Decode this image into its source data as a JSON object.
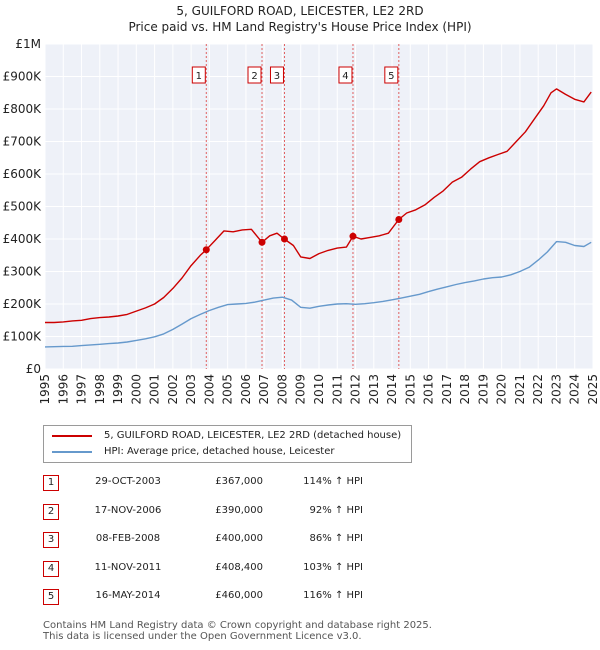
{
  "chart_data": {
    "type": "line",
    "title": "5, GUILFORD ROAD, LEICESTER, LE2 2RD",
    "subtitle": "Price paid vs. HM Land Registry's House Price Index (HPI)",
    "xlim": [
      1995,
      2025
    ],
    "ylim": [
      0,
      1000000
    ],
    "x_tick_labels": [
      "1995",
      "1996",
      "1997",
      "1998",
      "1999",
      "2000",
      "2001",
      "2002",
      "2003",
      "2004",
      "2005",
      "2006",
      "2007",
      "2008",
      "2009",
      "2010",
      "2011",
      "2012",
      "2013",
      "2014",
      "2015",
      "2016",
      "2017",
      "2018",
      "2019",
      "2020",
      "2021",
      "2022",
      "2023",
      "2024",
      "2025"
    ],
    "y_ticks": [
      {
        "value": 0,
        "label": "£0"
      },
      {
        "value": 100000,
        "label": "£100K"
      },
      {
        "value": 200000,
        "label": "£200K"
      },
      {
        "value": 300000,
        "label": "£300K"
      },
      {
        "value": 400000,
        "label": "£400K"
      },
      {
        "value": 500000,
        "label": "£500K"
      },
      {
        "value": 600000,
        "label": "£600K"
      },
      {
        "value": 700000,
        "label": "£700K"
      },
      {
        "value": 800000,
        "label": "£800K"
      },
      {
        "value": 900000,
        "label": "£900K"
      },
      {
        "value": 1000000,
        "label": "£1M"
      }
    ],
    "grid": true,
    "series": [
      {
        "name": "5, GUILFORD ROAD, LEICESTER, LE2 2RD (detached house)",
        "color": "#cc0000",
        "x": [
          1995.0,
          1995.5,
          1996.0,
          1996.5,
          1997.0,
          1997.5,
          1998.0,
          1998.5,
          1999.0,
          1999.5,
          2000.0,
          2000.5,
          2001.0,
          2001.5,
          2002.0,
          2002.5,
          2003.0,
          2003.5,
          2003.83,
          2004.3,
          2004.8,
          2005.3,
          2005.8,
          2006.3,
          2006.88,
          2007.3,
          2007.7,
          2008.1,
          2008.6,
          2009.0,
          2009.5,
          2010.0,
          2010.5,
          2011.0,
          2011.5,
          2011.86,
          2012.3,
          2012.8,
          2013.3,
          2013.8,
          2014.37,
          2014.8,
          2015.3,
          2015.8,
          2016.3,
          2016.8,
          2017.3,
          2017.8,
          2018.3,
          2018.8,
          2019.3,
          2019.8,
          2020.3,
          2020.8,
          2021.3,
          2021.8,
          2022.3,
          2022.7,
          2023.0,
          2023.5,
          2024.0,
          2024.5,
          2024.9
        ],
        "values": [
          143000,
          143000,
          145000,
          148000,
          150000,
          155000,
          158000,
          160000,
          163000,
          168000,
          178000,
          188000,
          200000,
          220000,
          248000,
          280000,
          318000,
          350000,
          367000,
          395000,
          425000,
          422000,
          428000,
          430000,
          390000,
          410000,
          418000,
          400000,
          380000,
          345000,
          340000,
          355000,
          365000,
          372000,
          375000,
          408400,
          400000,
          405000,
          410000,
          418000,
          460000,
          480000,
          490000,
          505000,
          528000,
          548000,
          575000,
          590000,
          615000,
          638000,
          650000,
          660000,
          670000,
          700000,
          730000,
          770000,
          810000,
          850000,
          862000,
          845000,
          830000,
          822000,
          852000
        ]
      },
      {
        "name": "HPI: Average price, detached house, Leicester",
        "color": "#6699cc",
        "x": [
          1995.0,
          1995.5,
          1996.0,
          1996.5,
          1997.0,
          1997.5,
          1998.0,
          1998.5,
          1999.0,
          1999.5,
          2000.0,
          2000.5,
          2001.0,
          2001.5,
          2002.0,
          2002.5,
          2003.0,
          2003.5,
          2004.0,
          2004.5,
          2005.0,
          2005.5,
          2006.0,
          2006.5,
          2007.0,
          2007.5,
          2008.0,
          2008.5,
          2009.0,
          2009.5,
          2010.0,
          2010.5,
          2011.0,
          2011.5,
          2012.0,
          2012.5,
          2013.0,
          2013.5,
          2014.0,
          2014.5,
          2015.0,
          2015.5,
          2016.0,
          2016.5,
          2017.0,
          2017.5,
          2018.0,
          2018.5,
          2019.0,
          2019.5,
          2020.0,
          2020.5,
          2021.0,
          2021.5,
          2022.0,
          2022.5,
          2023.0,
          2023.5,
          2024.0,
          2024.5,
          2024.9
        ],
        "values": [
          68000,
          68500,
          69500,
          70000,
          72000,
          74000,
          76000,
          78000,
          80000,
          83000,
          88000,
          93000,
          99000,
          108000,
          122000,
          138000,
          155000,
          168000,
          180000,
          190000,
          198000,
          200000,
          202000,
          206000,
          212000,
          218000,
          221000,
          212000,
          190000,
          187000,
          193000,
          197000,
          200000,
          201000,
          199000,
          201000,
          204000,
          208000,
          213000,
          218000,
          224000,
          230000,
          238000,
          246000,
          253000,
          260000,
          266000,
          271000,
          277000,
          281000,
          283000,
          290000,
          300000,
          313000,
          335000,
          360000,
          392000,
          390000,
          380000,
          377000,
          390000
        ]
      }
    ],
    "sales": [
      {
        "num": "1",
        "x": 2003.83,
        "value": 367000
      },
      {
        "num": "2",
        "x": 2006.88,
        "value": 390000
      },
      {
        "num": "3",
        "x": 2008.11,
        "value": 400000
      },
      {
        "num": "4",
        "x": 2011.86,
        "value": 408400
      },
      {
        "num": "5",
        "x": 2014.37,
        "value": 460000
      }
    ]
  },
  "legend": {
    "property_label": "5, GUILFORD ROAD, LEICESTER, LE2 2RD (detached house)",
    "hpi_label": "HPI: Average price, detached house, Leicester"
  },
  "table": [
    {
      "num": "1",
      "date": "29-OCT-2003",
      "price": "£367,000",
      "hpi": "114% ↑ HPI"
    },
    {
      "num": "2",
      "date": "17-NOV-2006",
      "price": "£390,000",
      "hpi": "92% ↑ HPI"
    },
    {
      "num": "3",
      "date": "08-FEB-2008",
      "price": "£400,000",
      "hpi": "86% ↑ HPI"
    },
    {
      "num": "4",
      "date": "11-NOV-2011",
      "price": "£408,400",
      "hpi": "103% ↑ HPI"
    },
    {
      "num": "5",
      "date": "16-MAY-2014",
      "price": "£460,000",
      "hpi": "116% ↑ HPI"
    }
  ],
  "footer": {
    "line1": "Contains HM Land Registry data © Crown copyright and database right 2025.",
    "line2": "This data is licensed under the Open Government Licence v3.0."
  }
}
